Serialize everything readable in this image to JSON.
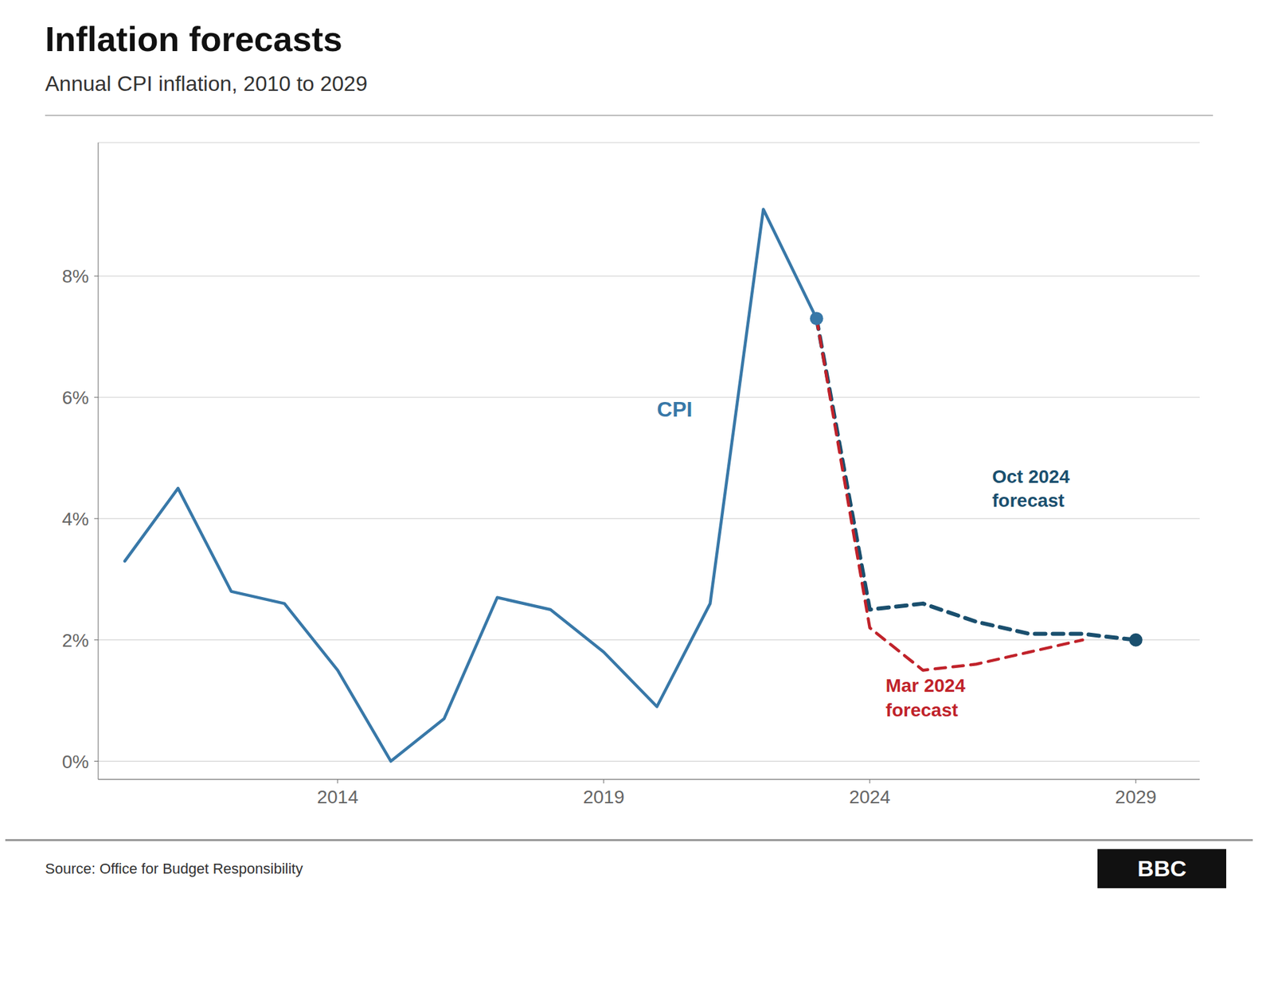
{
  "chart_data": {
    "type": "line",
    "title": "Inflation forecasts",
    "subtitle": "Annual CPI inflation, 2010 to 2029",
    "source": "Source: Office for Budget Responsibility",
    "credit": "BBC",
    "grid": true,
    "xlim": [
      2009.5,
      2030.2
    ],
    "xticks": [
      2014,
      2019,
      2024,
      2029
    ],
    "ylim": [
      -0.3,
      10.2
    ],
    "yticks": [
      {
        "value": 0,
        "label": "0%"
      },
      {
        "value": 2,
        "label": "2%"
      },
      {
        "value": 4,
        "label": "4%"
      },
      {
        "value": 6,
        "label": "6%"
      },
      {
        "value": 8,
        "label": "8%"
      }
    ],
    "series": [
      {
        "color": "#3878a8",
        "line_style": "solid",
        "x": [
          2010,
          2011,
          2012,
          2013,
          2014,
          2015,
          2016,
          2017,
          2018,
          2019,
          2020,
          2021,
          2022,
          2023
        ],
        "values": [
          3.3,
          4.5,
          2.8,
          2.6,
          1.5,
          0.0,
          0.7,
          2.7,
          2.5,
          1.8,
          0.9,
          2.6,
          9.1,
          7.3
        ]
      },
      {
        "color": "#1a4f6e",
        "line_style": "dashed",
        "x": [
          2023,
          2024,
          2025,
          2026,
          2027,
          2028,
          2029
        ],
        "values": [
          7.3,
          2.5,
          2.6,
          2.3,
          2.1,
          2.1,
          2.0
        ]
      },
      {
        "color": "#c0222a",
        "line_style": "dashed",
        "x": [
          2023,
          2024,
          2025,
          2026,
          2027,
          2028
        ],
        "values": [
          7.3,
          2.2,
          1.5,
          1.6,
          1.8,
          2.0
        ]
      }
    ],
    "annotations": [
      {
        "text": "CPI",
        "x": 2020.0,
        "y": 5.8,
        "color": "#3878a8"
      },
      {
        "text": "Oct 2024\nforecast",
        "x": 2026.3,
        "y": 4.5,
        "color": "#1a4f6e"
      },
      {
        "text": "Mar 2024\nforecast",
        "x": 2024.3,
        "y": 1.05,
        "color": "#c0222a"
      }
    ]
  }
}
